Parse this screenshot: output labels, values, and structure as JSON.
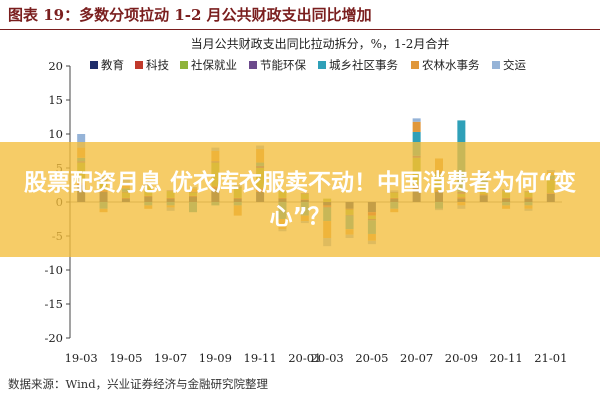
{
  "figure": {
    "title": "图表 19：多数分项拉动 1-2 月公共财政支出同比增加",
    "source": "数据来源：Wind，兴业证券经济与金融研究院整理"
  },
  "overlay": {
    "text": "股票配资月息 优衣库衣服卖不动！中国消费者为何“变心”？"
  },
  "chart_data": {
    "type": "bar",
    "stacked": true,
    "title": "当月公共财政支出同比拉动拆分，%，1-2月合并",
    "xlabel": "",
    "ylabel": "",
    "ylim": [
      -20,
      20
    ],
    "yticks": [
      -20,
      -15,
      -10,
      -5,
      0,
      5,
      10,
      15,
      20
    ],
    "grid": false,
    "legend_position": "top",
    "categories": [
      "19-03",
      "19-04",
      "19-05",
      "19-06",
      "19-07",
      "19-08",
      "19-09",
      "19-10",
      "19-11",
      "19-12",
      "20-01",
      "20-03",
      "20-04",
      "20-05",
      "20-06",
      "20-07",
      "20-08",
      "20-09",
      "20-10",
      "20-11",
      "20-12",
      "21-01"
    ],
    "xtick_labels": [
      "19-03",
      "19-05",
      "19-07",
      "19-09",
      "19-11",
      "20-01",
      "20-03",
      "20-05",
      "20-07",
      "20-09",
      "20-11",
      "21-01"
    ],
    "series": [
      {
        "name": "教育",
        "color": "#1f2d6b",
        "values": [
          2.5,
          1.5,
          0.5,
          0.8,
          0.5,
          0.8,
          2.0,
          0.5,
          1.5,
          0.5,
          0.3,
          -0.5,
          -1.0,
          -1.5,
          0.5,
          2.0,
          1.5,
          0.5,
          1.0,
          0.5,
          0.5,
          1.2
        ]
      },
      {
        "name": "科技",
        "color": "#c0392b",
        "values": [
          0.3,
          0.2,
          0.1,
          0.1,
          0.1,
          0.1,
          0.3,
          0.1,
          0.5,
          0.1,
          0.1,
          -0.2,
          -0.1,
          -0.5,
          0.1,
          0.5,
          0.2,
          0.2,
          0.1,
          0.1,
          0.2,
          0.1
        ]
      },
      {
        "name": "社保就业",
        "color": "#8fb33a",
        "values": [
          3.0,
          1.5,
          0.8,
          1.5,
          1.0,
          0.5,
          3.5,
          1.5,
          3.0,
          1.0,
          0.8,
          0.5,
          -0.8,
          -0.5,
          0.8,
          4.0,
          2.5,
          0.5,
          1.5,
          1.0,
          0.8,
          2.0
        ]
      },
      {
        "name": "节能环保",
        "color": "#6c4a8c",
        "values": [
          0.2,
          0.2,
          0.1,
          0.1,
          0.1,
          0.1,
          0.2,
          0.1,
          0.3,
          0.1,
          0.1,
          -0.1,
          -0.1,
          -0.2,
          0.1,
          0.3,
          0.2,
          0.3,
          0.1,
          0.1,
          0.1,
          0.1
        ]
      },
      {
        "name": "城乡社区事务",
        "color": "#2fa0b8",
        "values": [
          0.5,
          -1.0,
          0.5,
          -0.5,
          -0.5,
          -1.5,
          -0.5,
          -0.5,
          0.5,
          -2.5,
          -2.0,
          -2.0,
          -2.0,
          -2.0,
          -1.0,
          3.5,
          -1.0,
          10.5,
          0.5,
          -0.5,
          -0.5,
          0.5
        ]
      },
      {
        "name": "农林水事务",
        "color": "#e0973a",
        "values": [
          1.5,
          -0.5,
          0.8,
          -0.5,
          -0.3,
          0.5,
          1.5,
          -1.5,
          2.0,
          -1.5,
          -0.8,
          -2.5,
          -0.8,
          -1.0,
          -0.5,
          1.5,
          2.0,
          -0.5,
          1.0,
          -0.5,
          -0.5,
          0.5
        ]
      },
      {
        "name": "交运",
        "color": "#95b3d7",
        "values": [
          2.0,
          0.3,
          0.5,
          0.3,
          -0.5,
          0.2,
          0.5,
          0.3,
          0.5,
          -0.3,
          -0.3,
          -1.2,
          -0.5,
          -0.5,
          0.2,
          0.5,
          -0.2,
          -0.5,
          0.3,
          0.2,
          -0.3,
          0.3
        ]
      }
    ]
  }
}
